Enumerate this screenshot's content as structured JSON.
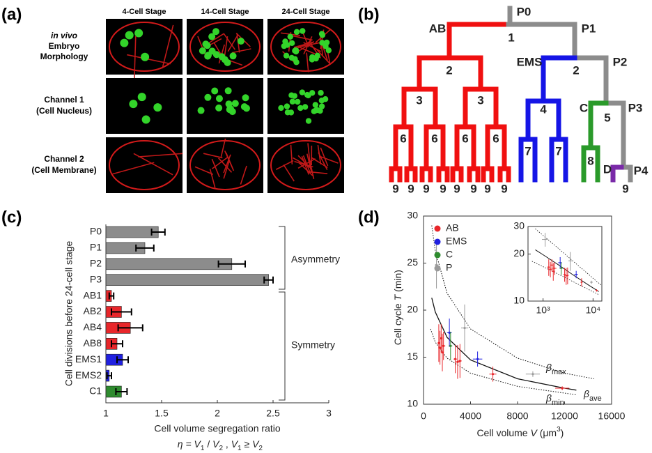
{
  "panel_labels": [
    "(a)",
    "(b)",
    "(c)",
    "(d)"
  ],
  "panel_a": {
    "columns": [
      "4-Cell Stage",
      "14-Cell Stage",
      "24-Cell Stage"
    ],
    "rows": [
      [
        "in vivo",
        "Embryo",
        "Morphology"
      ],
      [
        "Channel 1",
        "(Cell Nucleus)"
      ],
      [
        "Channel 2",
        "(Cell Membrane)"
      ]
    ]
  },
  "panel_b": {
    "lineages": [
      "P0",
      "P1",
      "P2",
      "P3",
      "P4",
      "AB",
      "EMS",
      "C",
      "D"
    ],
    "division_numbers": [
      1,
      2,
      2,
      3,
      3,
      4,
      5,
      6,
      6,
      6,
      6,
      7,
      7,
      8,
      9,
      9,
      9,
      9,
      9,
      9,
      9,
      9,
      9
    ]
  },
  "chart_data": [
    {
      "type": "bar",
      "ylabel": "Cell divisions before 24-cell stage",
      "xlabel": "Cell volume segregation ratio",
      "xlabel2": [
        "η = ",
        "V",
        "1",
        " / ",
        "V",
        "2",
        " , ",
        "V",
        "1",
        " ≥ ",
        "V",
        "2"
      ],
      "categories": [
        "P0",
        "P1",
        "P2",
        "P3",
        "AB1",
        "AB2",
        "AB4",
        "AB8",
        "EMS1",
        "EMS2",
        "C1"
      ],
      "values": [
        1.47,
        1.35,
        2.13,
        2.46,
        1.05,
        1.14,
        1.22,
        1.1,
        1.15,
        1.03,
        1.14
      ],
      "errors": [
        0.06,
        0.08,
        0.12,
        0.04,
        0.02,
        0.09,
        0.11,
        0.05,
        0.05,
        0.02,
        0.05
      ],
      "colors": [
        "#8c8c8c",
        "#8c8c8c",
        "#8c8c8c",
        "#8c8c8c",
        "#e8262a",
        "#e8262a",
        "#e8262a",
        "#e8262a",
        "#2020e0",
        "#2020e0",
        "#2e8b2e"
      ],
      "xlim": [
        1,
        3
      ],
      "xticks": [
        1,
        1.5,
        2,
        2.5,
        3
      ],
      "annotations": [
        "Asymmetry",
        "Symmetry"
      ]
    },
    {
      "type": "scatter",
      "xlabel": [
        "Cell volume ",
        "V",
        " (μm",
        "3",
        ")"
      ],
      "ylabel": [
        "Cell cycle ",
        "T",
        " (min)"
      ],
      "xlim": [
        0,
        16000
      ],
      "xticks": [
        0,
        4000,
        8000,
        12000,
        16000
      ],
      "ylim": [
        10,
        30
      ],
      "yticks": [
        10,
        15,
        20,
        25,
        30
      ],
      "legend": "upper left",
      "series": [
        {
          "name": "AB",
          "color": "#e8262a",
          "x": [
            1300,
            1400,
            1500,
            1600,
            1700,
            2700,
            2900,
            3100,
            5900,
            11800
          ],
          "values": [
            16.5,
            16,
            17,
            15.5,
            16.2,
            14.8,
            14.5,
            14.6,
            13.2,
            11.7
          ],
          "xerr": [
            100,
            150,
            100,
            100,
            150,
            150,
            200,
            150,
            300,
            600
          ],
          "yerr": [
            2,
            1.8,
            1.5,
            2,
            1.5,
            1.5,
            1.8,
            1.8,
            0.8,
            0.2
          ]
        },
        {
          "name": "EMS",
          "color": "#2020e0",
          "x": [
            2200,
            4600
          ],
          "values": [
            17.6,
            14.8
          ],
          "xerr": [
            200,
            400
          ],
          "yerr": [
            1.5,
            0.8
          ]
        },
        {
          "name": "C",
          "color": "#2e8b2e",
          "x": [
            2300
          ],
          "values": [
            16.2
          ],
          "xerr": [
            150
          ],
          "yerr": [
            1.5
          ]
        },
        {
          "name": "P",
          "color": "#9a9a9a",
          "x": [
            1100,
            3500,
            9300
          ],
          "values": [
            24.8,
            18.1,
            13.2
          ],
          "xerr": [
            150,
            300,
            600
          ],
          "yerr": [
            2.5,
            2.5,
            0.3
          ]
        }
      ],
      "curves": [
        {
          "linestyle": "dotted",
          "x": [
            700,
            1000,
            2000,
            4000,
            8000,
            12000,
            14500
          ],
          "values": [
            29,
            26.3,
            21.8,
            18.0,
            14.9,
            13.3,
            12.7
          ]
        },
        {
          "linestyle": "solid",
          "x": [
            700,
            1000,
            2000,
            4000,
            8000,
            12000,
            13000
          ],
          "values": [
            21.3,
            19.8,
            17.1,
            14.7,
            12.7,
            11.7,
            11.5
          ]
        },
        {
          "linestyle": "dotted",
          "x": [
            600,
            1000,
            2000,
            4000,
            8000,
            13000
          ],
          "values": [
            18,
            16.6,
            14.9,
            13.3,
            11.9,
            11.0
          ]
        }
      ],
      "annotations": [
        {
          "symbol": "β",
          "subscript": "max"
        },
        {
          "symbol": "β",
          "subscript": "ave"
        },
        {
          "symbol": "β",
          "subscript": "min"
        }
      ],
      "inset": {
        "log_scale": true,
        "xlim": [
          500,
          15000
        ],
        "ylim": [
          10,
          30
        ],
        "xticks": [
          {
            "value": 1000,
            "label": "10³"
          },
          {
            "value": 10000,
            "label": "10⁴"
          }
        ],
        "yticks": [
          10,
          20,
          30
        ]
      }
    }
  ]
}
